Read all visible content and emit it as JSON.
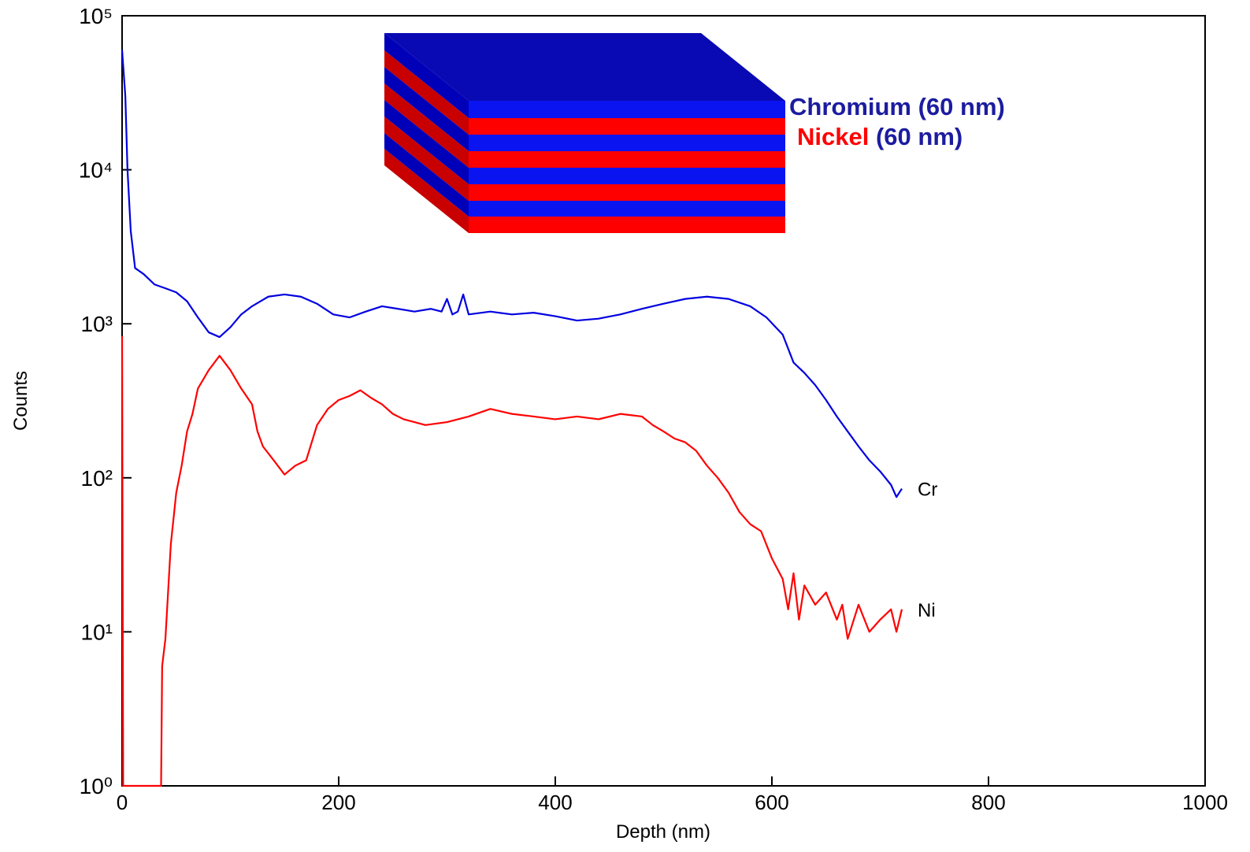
{
  "chart_data": {
    "type": "line",
    "x_label": "Depth (nm)",
    "y_label": "Counts",
    "annotations": [
      "Chromium (60 nm)",
      "Nickel",
      "(60 nm)"
    ],
    "log_y": true,
    "xlim": [
      0,
      1000
    ],
    "xticks": [
      0,
      200,
      400,
      600,
      800,
      1000
    ],
    "ylim": [
      1,
      100000
    ],
    "yticks": [
      {
        "value": 1,
        "label": "10⁰"
      },
      {
        "value": 10,
        "label": "10¹"
      },
      {
        "value": 100,
        "label": "10²"
      },
      {
        "value": 1000,
        "label": "10³"
      },
      {
        "value": 10000,
        "label": "10⁴"
      },
      {
        "value": 100000,
        "label": "10⁵"
      }
    ],
    "series": [
      {
        "name": "Cr",
        "color": "#0000e0",
        "x": [
          0,
          3,
          5,
          8,
          12,
          20,
          30,
          40,
          50,
          60,
          70,
          80,
          90,
          100,
          110,
          120,
          135,
          150,
          165,
          180,
          195,
          210,
          225,
          240,
          255,
          270,
          285,
          295,
          300,
          305,
          310,
          315,
          320,
          340,
          360,
          380,
          400,
          420,
          440,
          460,
          480,
          500,
          520,
          540,
          560,
          580,
          595,
          610,
          620,
          630,
          640,
          650,
          660,
          670,
          680,
          690,
          700,
          710,
          715,
          720
        ],
        "values": [
          60000,
          30000,
          10000,
          4000,
          2300,
          2100,
          1800,
          1700,
          1600,
          1400,
          1100,
          880,
          820,
          950,
          1150,
          1300,
          1500,
          1550,
          1500,
          1350,
          1150,
          1100,
          1200,
          1300,
          1250,
          1200,
          1250,
          1200,
          1450,
          1150,
          1200,
          1550,
          1150,
          1200,
          1150,
          1180,
          1120,
          1050,
          1080,
          1150,
          1250,
          1350,
          1450,
          1500,
          1450,
          1300,
          1100,
          850,
          560,
          480,
          400,
          320,
          250,
          200,
          160,
          130,
          110,
          90,
          75,
          85
        ]
      },
      {
        "name": "Ni",
        "color": "#ff0000",
        "x": [
          0,
          1,
          36,
          37,
          40,
          45,
          50,
          55,
          60,
          65,
          70,
          80,
          90,
          100,
          110,
          120,
          125,
          130,
          140,
          150,
          160,
          170,
          180,
          190,
          200,
          210,
          220,
          230,
          240,
          250,
          260,
          270,
          280,
          300,
          320,
          340,
          360,
          380,
          400,
          420,
          440,
          460,
          480,
          490,
          500,
          510,
          520,
          530,
          540,
          550,
          560,
          570,
          580,
          590,
          600,
          610,
          615,
          620,
          625,
          630,
          640,
          650,
          660,
          665,
          670,
          680,
          690,
          700,
          710,
          715,
          720
        ],
        "values": [
          830,
          1,
          1,
          6,
          9,
          37,
          80,
          120,
          200,
          260,
          380,
          500,
          620,
          500,
          380,
          300,
          200,
          160,
          130,
          105,
          120,
          130,
          220,
          280,
          320,
          340,
          370,
          330,
          300,
          260,
          240,
          230,
          220,
          230,
          250,
          280,
          260,
          250,
          240,
          250,
          240,
          260,
          250,
          220,
          200,
          180,
          170,
          150,
          120,
          100,
          80,
          60,
          50,
          45,
          30,
          22,
          14,
          24,
          12,
          20,
          15,
          18,
          12,
          15,
          9,
          15,
          10,
          12,
          14,
          10,
          14
        ]
      }
    ]
  }
}
